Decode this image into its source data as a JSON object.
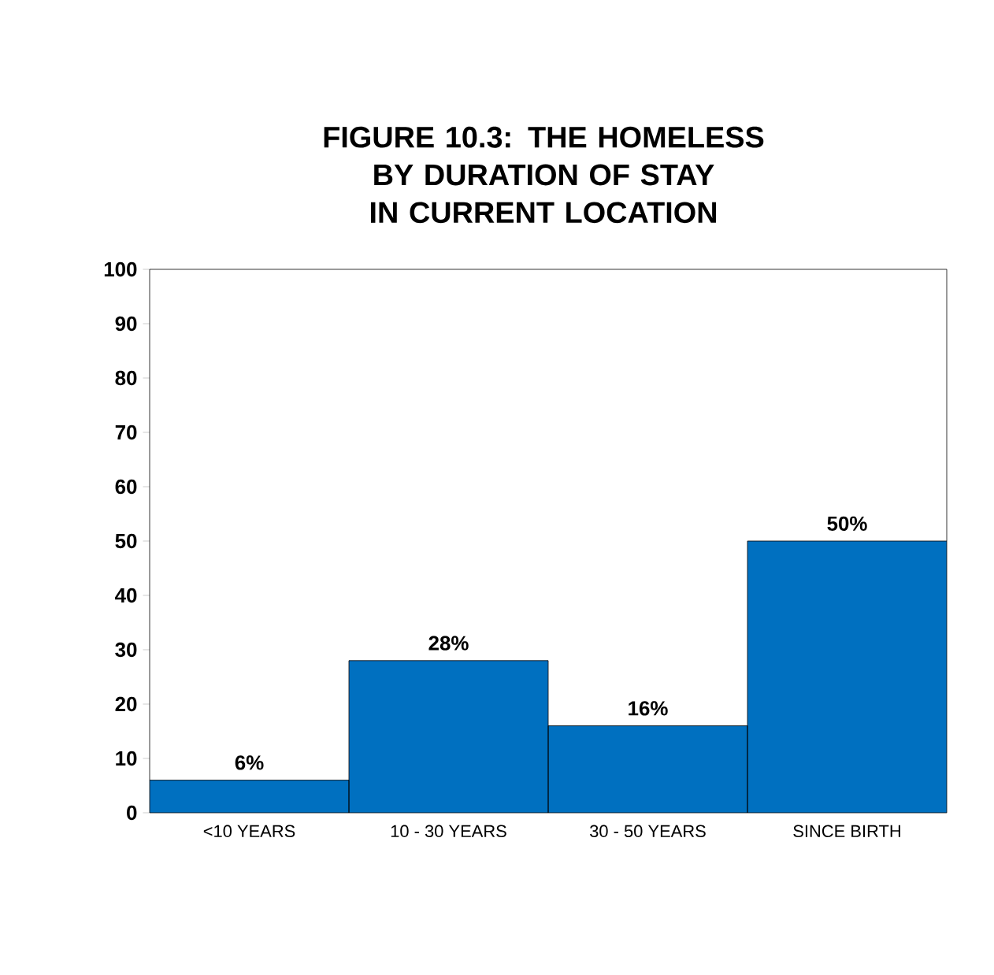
{
  "chart_data": {
    "type": "bar",
    "title": "FIGURE 10.3: THE HOMELESS BY DURATION OF STAY IN CURRENT LOCATION",
    "categories": [
      "<10 YEARS",
      "10 - 30 YEARS",
      "30 - 50 YEARS",
      "SINCE BIRTH"
    ],
    "values": [
      6,
      28,
      16,
      50
    ],
    "value_labels": [
      "6%",
      "28%",
      "16%",
      "50%"
    ],
    "color": "#0070c0",
    "ylim": [
      0,
      100
    ],
    "yticks": [
      0,
      10,
      20,
      30,
      40,
      50,
      60,
      70,
      80,
      90,
      100
    ]
  }
}
